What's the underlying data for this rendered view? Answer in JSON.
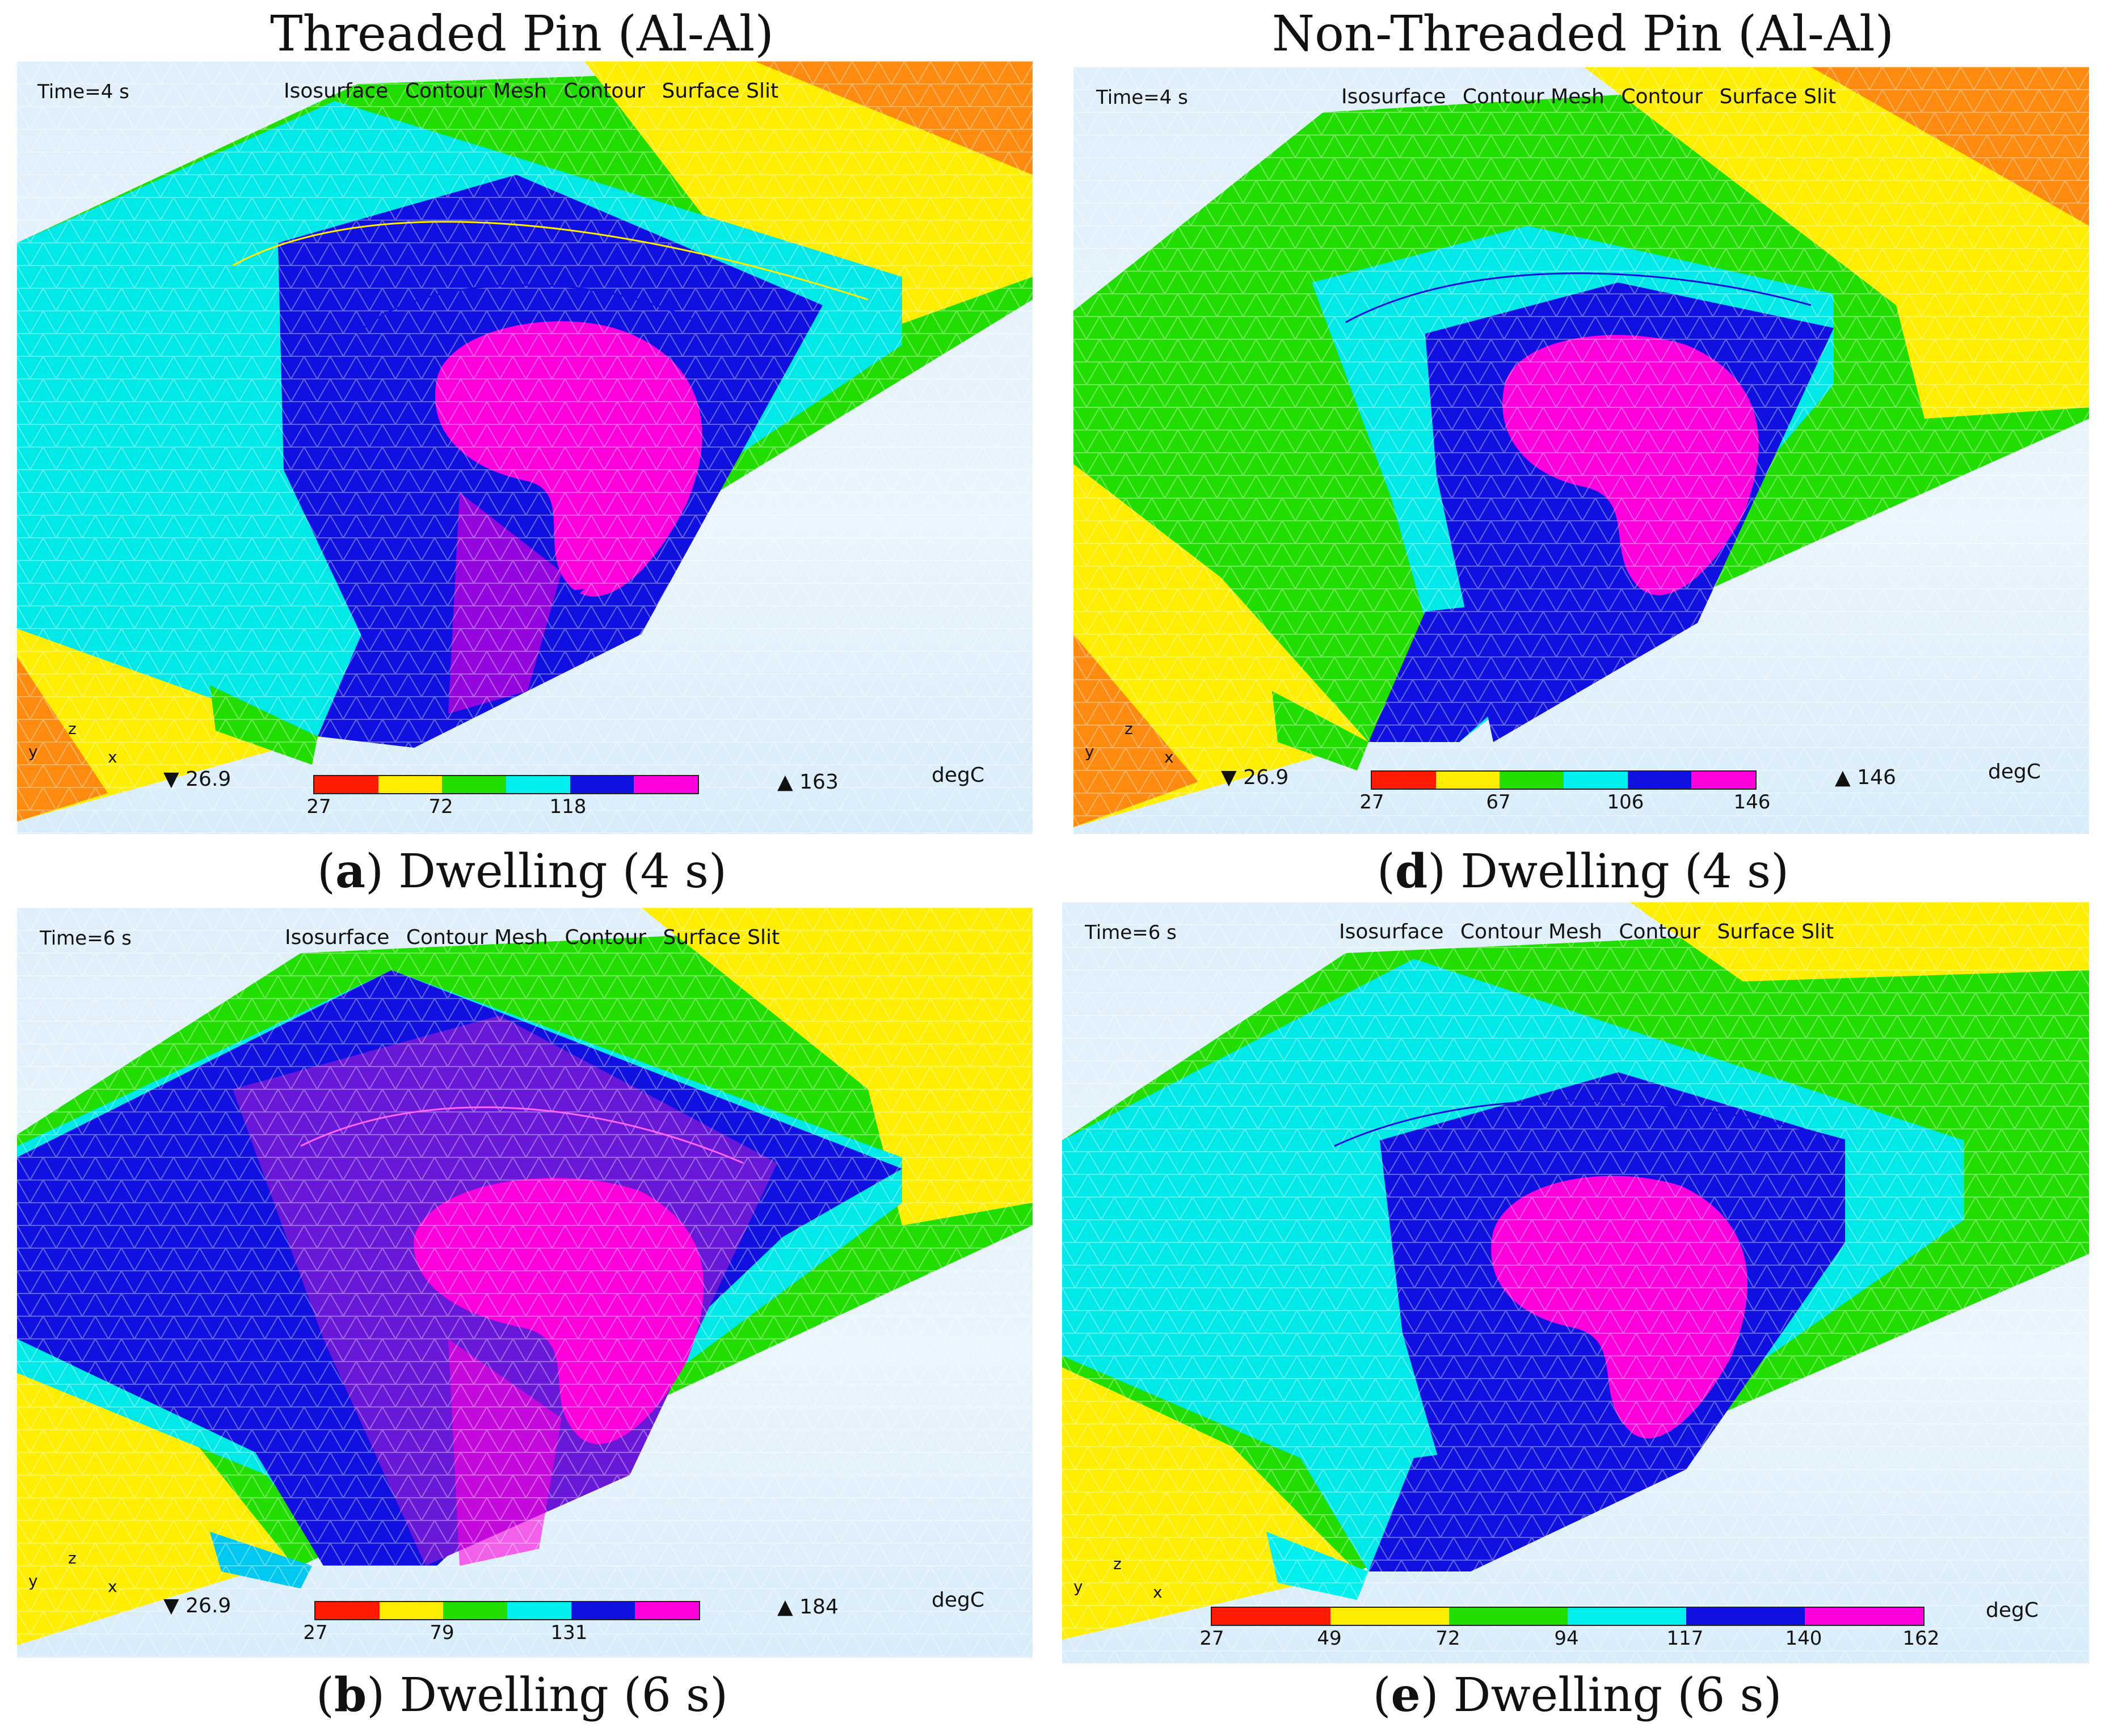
{
  "column_titles": {
    "left": "Threaded Pin (Al-Al)",
    "right": "Non-Threaded Pin (Al-Al)"
  },
  "colors": {
    "red": "#ff1a00",
    "yellow": "#ffee00",
    "green": "#22dd00",
    "cyan": "#00f0f0",
    "blue": "#1010e0",
    "magenta": "#ff00dd",
    "orange": "#ff8a10"
  },
  "menu": [
    "Isosurface",
    "Contour Mesh",
    "Contour",
    "Surface Slit"
  ],
  "axes": {
    "y": "y",
    "z": "z",
    "x": "x"
  },
  "panels": {
    "a": {
      "time": "Time=4 s",
      "min_value": "26.9",
      "max_value": "163",
      "unit": "degC",
      "ticks": [
        "27",
        "72",
        "118"
      ],
      "caption_letter": "a",
      "caption_text": " Dwelling (4 s)"
    },
    "d": {
      "time": "Time=4 s",
      "min_value": "26.9",
      "max_value": "146",
      "unit": "degC",
      "ticks": [
        "27",
        "67",
        "106",
        "146"
      ],
      "caption_letter": "d",
      "caption_text": " Dwelling (4 s)"
    },
    "b": {
      "time": "Time=6 s",
      "min_value": "26.9",
      "max_value": "184",
      "unit": "degC",
      "ticks": [
        "27",
        "79",
        "131"
      ],
      "caption_letter": "b",
      "caption_text": " Dwelling (6 s)"
    },
    "e": {
      "time": "Time=6 s",
      "unit": "degC",
      "ticks": [
        "27",
        "49",
        "72",
        "94",
        "117",
        "140",
        "162"
      ],
      "caption_letter": "e",
      "caption_text": " Dwelling (6 s)"
    }
  }
}
